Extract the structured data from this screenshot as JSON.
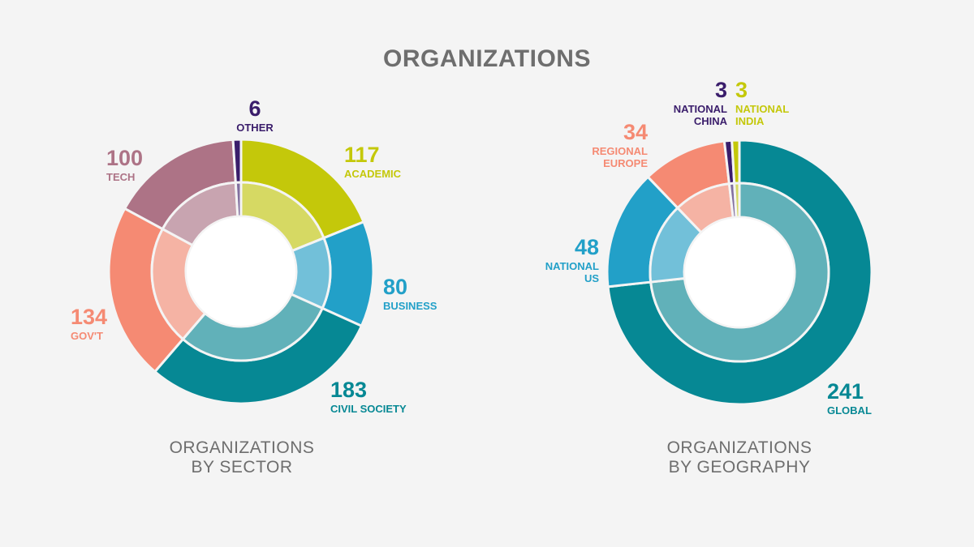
{
  "title": "ORGANIZATIONS",
  "chart_data": [
    {
      "type": "pie",
      "variant": "donut",
      "title_lines": [
        "ORGANIZATIONS",
        "BY SECTOR"
      ],
      "slices": [
        {
          "label": "ACADEMIC",
          "value": 117,
          "color": "#c4c80a"
        },
        {
          "label": "BUSINESS",
          "value": 80,
          "color": "#22a0c8"
        },
        {
          "label": "CIVIL SOCIETY",
          "value": 183,
          "color": "#068894"
        },
        {
          "label": "GOV'T",
          "value": 134,
          "color": "#f58a73"
        },
        {
          "label": "TECH",
          "value": 100,
          "color": "#ad7386"
        },
        {
          "label": "OTHER",
          "value": 6,
          "color": "#3a1d6b"
        }
      ]
    },
    {
      "type": "pie",
      "variant": "donut",
      "title_lines": [
        "ORGANIZATIONS",
        "BY GEOGRAPHY"
      ],
      "slices": [
        {
          "label": "GLOBAL",
          "value": 241,
          "color": "#068894"
        },
        {
          "label": "NATIONAL US",
          "value": 48,
          "color": "#22a0c8"
        },
        {
          "label": "REGIONAL EUROPE",
          "value": 34,
          "color": "#f58a73"
        },
        {
          "label": "NATIONAL CHINA",
          "value": 3,
          "color": "#3a1d6b"
        },
        {
          "label": "NATIONAL INDIA",
          "value": 3,
          "color": "#c4c80a"
        }
      ]
    }
  ],
  "labels": {
    "sector": [
      {
        "value": "117",
        "lines": [
          "ACADEMIC"
        ]
      },
      {
        "value": "80",
        "lines": [
          "BUSINESS"
        ]
      },
      {
        "value": "183",
        "lines": [
          "CIVIL SOCIETY"
        ]
      },
      {
        "value": "134",
        "lines": [
          "GOV'T"
        ]
      },
      {
        "value": "100",
        "lines": [
          "TECH"
        ]
      },
      {
        "value": "6",
        "lines": [
          "OTHER"
        ]
      }
    ],
    "geo": [
      {
        "value": "241",
        "lines": [
          "GLOBAL"
        ]
      },
      {
        "value": "48",
        "lines": [
          "NATIONAL",
          "US"
        ]
      },
      {
        "value": "34",
        "lines": [
          "REGIONAL",
          "EUROPE"
        ]
      },
      {
        "value": "3",
        "lines": [
          "NATIONAL",
          "CHINA"
        ]
      },
      {
        "value": "3",
        "lines": [
          "NATIONAL",
          "INDIA"
        ]
      }
    ]
  }
}
